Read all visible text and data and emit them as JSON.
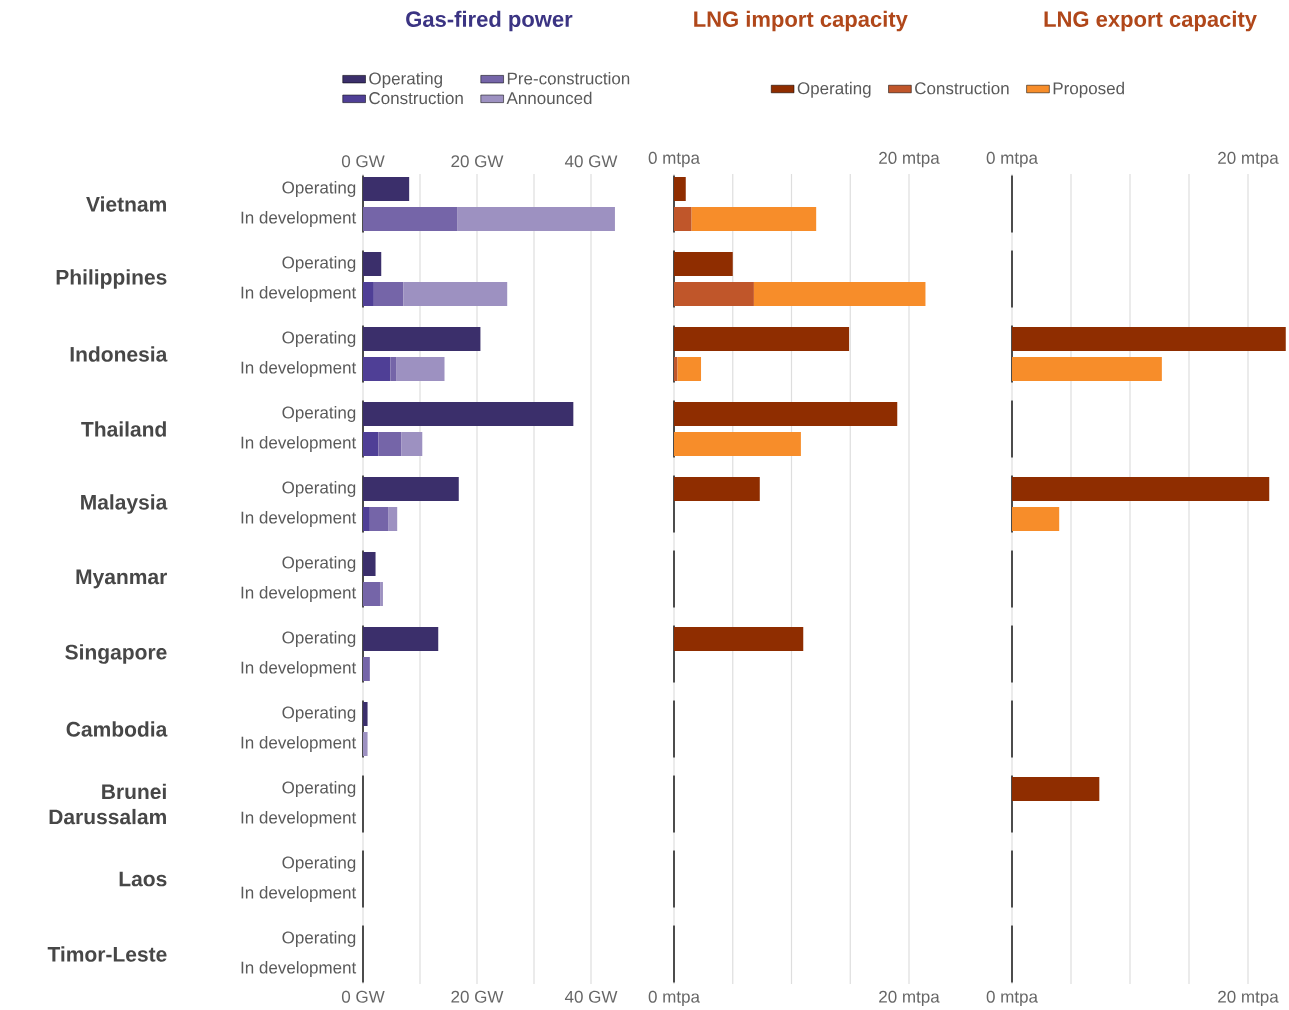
{
  "chart_data": [
    {
      "type": "bar",
      "orientation": "horizontal",
      "stacked": true,
      "title": "Gas-fired power",
      "grid": "x",
      "legend": "top",
      "categories": [
        "Operating",
        "In development",
        "Operating",
        "In development",
        "Operating",
        "In development",
        "Operating",
        "In development",
        "Operating",
        "In development",
        "Operating",
        "In development",
        "Operating",
        "In development",
        "Operating",
        "In development",
        "Operating",
        "In development",
        "Operating",
        "In development",
        "Operating",
        "In development"
      ],
      "annotations": [
        "Vietnam",
        "Philippines",
        "Indonesia",
        "Thailand",
        "Malaysia",
        "Myanmar",
        "Singapore",
        "Cambodia",
        "Brunei Darussalam",
        "Laos",
        "Timor-Leste"
      ],
      "series": [
        {
          "name": "Operating",
          "color": "#3b2f6b",
          "values": [
            8.1,
            null,
            3.2,
            null,
            20.6,
            null,
            36.9,
            null,
            16.8,
            null,
            2.2,
            null,
            13.2,
            null,
            0.8,
            null,
            0,
            null,
            0,
            null,
            0,
            null
          ]
        },
        {
          "name": "Construction",
          "color": "#4f3f96",
          "values": [
            null,
            0,
            null,
            1.9,
            null,
            4.8,
            null,
            2.7,
            null,
            1.2,
            null,
            0,
            null,
            0,
            null,
            0,
            null,
            0,
            null,
            0,
            null,
            0
          ]
        },
        {
          "name": "Pre-construction",
          "color": "#7565a8",
          "values": [
            null,
            16.6,
            null,
            5.2,
            null,
            1.0,
            null,
            4.0,
            null,
            3.2,
            null,
            3.0,
            null,
            1.2,
            null,
            0,
            null,
            0,
            null,
            0,
            null,
            0
          ]
        },
        {
          "name": "Announced",
          "color": "#9d91c1",
          "values": [
            null,
            27.6,
            null,
            18.2,
            null,
            8.5,
            null,
            3.7,
            null,
            1.6,
            null,
            0.5,
            null,
            0,
            null,
            0.8,
            null,
            0,
            null,
            0,
            null,
            0
          ]
        }
      ],
      "xlim": [
        0,
        44.2
      ],
      "xticks": [
        {
          "value": 0,
          "label": "0 GW"
        },
        {
          "value": 10,
          "label": null
        },
        {
          "value": 20,
          "label": "20 GW"
        },
        {
          "value": 30,
          "label": null
        },
        {
          "value": 40,
          "label": "40 GW"
        }
      ],
      "x2lim": [
        0,
        44.2
      ],
      "x2ticks": [
        {
          "value": 0,
          "label": "0 GW"
        },
        {
          "value": 10,
          "label": null
        },
        {
          "value": 20,
          "label": "20 GW"
        },
        {
          "value": 30,
          "label": null
        },
        {
          "value": 40,
          "label": "40 GW"
        }
      ]
    },
    {
      "type": "bar",
      "orientation": "horizontal",
      "stacked": true,
      "title": "LNG import capacity",
      "grid": "x",
      "legend": "top",
      "tick_labels": "x",
      "categories": [
        null,
        null,
        null,
        null,
        null,
        null,
        null,
        null,
        null,
        null,
        null,
        null,
        null,
        null,
        null,
        null,
        null,
        null,
        null,
        null,
        null,
        null
      ],
      "series": [
        {
          "name": "Operating",
          "color": "#8f2d00",
          "values": [
            1.0,
            null,
            5.0,
            null,
            14.9,
            null,
            19.0,
            null,
            7.3,
            null,
            0,
            null,
            11.0,
            null,
            0,
            null,
            0,
            null,
            0,
            null,
            0,
            null
          ]
        },
        {
          "name": "Construction",
          "color": "#c0562a",
          "values": [
            null,
            1.5,
            null,
            6.8,
            null,
            0.3,
            null,
            0,
            null,
            0,
            null,
            0,
            null,
            0,
            null,
            0,
            null,
            0,
            null,
            0,
            null,
            0
          ]
        },
        {
          "name": "Proposed",
          "color": "#f78d2a",
          "values": [
            null,
            10.6,
            null,
            14.6,
            null,
            2.0,
            null,
            10.8,
            null,
            0,
            null,
            0,
            null,
            0,
            null,
            0,
            null,
            0,
            null,
            0,
            null,
            0
          ]
        }
      ],
      "xlim": [
        0,
        21.5
      ],
      "xticks": [
        {
          "value": 0,
          "label": "0 mtpa"
        },
        {
          "value": 5,
          "label": null
        },
        {
          "value": 10,
          "label": null
        },
        {
          "value": 15,
          "label": null
        },
        {
          "value": 20,
          "label": "20 mtpa"
        }
      ],
      "x2lim": [
        0,
        21.5
      ],
      "x2ticks": [
        {
          "value": 0,
          "label": "0 mtpa"
        },
        {
          "value": 5,
          "label": null
        },
        {
          "value": 10,
          "label": null
        },
        {
          "value": 15,
          "label": null
        },
        {
          "value": 20,
          "label": "20 mtpa"
        }
      ]
    },
    {
      "type": "bar",
      "orientation": "horizontal",
      "stacked": true,
      "title": "LNG export capacity",
      "grid": "x",
      "tick_labels": "x",
      "categories": [
        null,
        null,
        null,
        null,
        null,
        null,
        null,
        null,
        null,
        null,
        null,
        null,
        null,
        null,
        null,
        null,
        null,
        null,
        null,
        null,
        null,
        null
      ],
      "series": [
        {
          "color": "#8f2d00",
          "values": [
            0,
            null,
            0,
            null,
            23.2,
            null,
            0,
            null,
            21.8,
            null,
            0,
            null,
            0,
            null,
            0,
            null,
            7.4,
            null,
            0,
            null,
            0,
            null
          ]
        },
        {
          "color": "#f78d2a",
          "values": [
            null,
            0,
            null,
            0,
            null,
            12.7,
            null,
            0,
            null,
            4.0,
            null,
            0,
            null,
            0,
            null,
            0,
            null,
            0,
            null,
            0,
            null,
            0
          ]
        }
      ],
      "xlim": [
        0,
        23.4
      ],
      "xticks": [
        {
          "value": 0,
          "label": "0 mtpa"
        },
        {
          "value": 5,
          "label": null
        },
        {
          "value": 10,
          "label": null
        },
        {
          "value": 15,
          "label": null
        },
        {
          "value": 20,
          "label": "20 mtpa"
        }
      ],
      "x2lim": [
        0,
        23.4
      ],
      "x2ticks": [
        {
          "value": 0,
          "label": "0 mtpa"
        },
        {
          "value": 5,
          "label": null
        },
        {
          "value": 10,
          "label": null
        },
        {
          "value": 15,
          "label": null
        },
        {
          "value": 20,
          "label": "20 mtpa"
        }
      ]
    }
  ]
}
